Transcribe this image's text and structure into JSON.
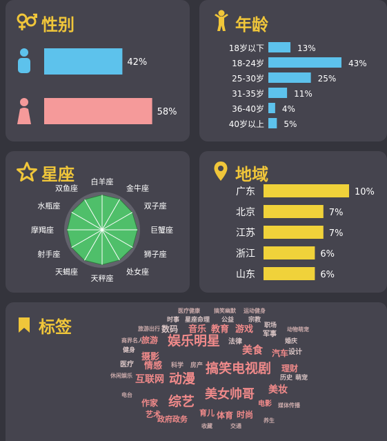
{
  "colors": {
    "accent": "#f0c63a",
    "male": "#5dc2ec",
    "female": "#f59a9a",
    "age_bar": "#5dc2ec",
    "region_bar": "#f0d23a",
    "zodiac_fill": "#4fbf6a",
    "tag_red": "#f08a8a"
  },
  "gender": {
    "title": "性别",
    "icon": "gender-icon",
    "chart_data": {
      "type": "bar",
      "categories": [
        "男",
        "女"
      ],
      "values": [
        42,
        58
      ],
      "value_labels": [
        "42%",
        "58%"
      ],
      "xlim": [
        0,
        100
      ]
    }
  },
  "age": {
    "title": "年龄",
    "icon": "person-icon",
    "chart_data": {
      "type": "bar",
      "categories": [
        "18岁以下",
        "18-24岁",
        "25-30岁",
        "31-35岁",
        "36-40岁",
        "40岁以上"
      ],
      "values": [
        13,
        43,
        25,
        11,
        4,
        5
      ],
      "value_labels": [
        "13%",
        "43%",
        "25%",
        "11%",
        "4%",
        "5%"
      ],
      "xlim": [
        0,
        43
      ]
    }
  },
  "zodiac": {
    "title": "星座",
    "icon": "star-icon",
    "chart_data": {
      "type": "radar",
      "categories": [
        "白羊座",
        "金牛座",
        "双子座",
        "巨蟹座",
        "狮子座",
        "处女座",
        "天秤座",
        "天蝎座",
        "射手座",
        "摩羯座",
        "水瓶座",
        "双鱼座"
      ],
      "values": [
        0.92,
        0.93,
        0.92,
        0.93,
        0.93,
        0.92,
        0.92,
        0.93,
        0.93,
        0.92,
        0.93,
        0.92
      ],
      "rlim": [
        0,
        1
      ]
    }
  },
  "region": {
    "title": "地域",
    "icon": "location-pin-icon",
    "chart_data": {
      "type": "bar",
      "categories": [
        "广东",
        "北京",
        "江苏",
        "浙江",
        "山东"
      ],
      "values": [
        10,
        7,
        7,
        6,
        6
      ],
      "value_labels": [
        "10%",
        "7%",
        "7%",
        "6%",
        "6%"
      ],
      "xlim": [
        0,
        10
      ]
    }
  },
  "tags": {
    "title": "标签",
    "icon": "bookmark-icon",
    "words": [
      {
        "text": "医疗健康",
        "color": "#c9a9a9"
      },
      {
        "text": "搞笑幽默",
        "color": "#c9a9a9"
      },
      {
        "text": "运动健身",
        "color": "#c9a9a9"
      },
      {
        "text": "时事",
        "color": "#d9c4c4"
      },
      {
        "text": "星座命理",
        "color": "#d9c4c4"
      },
      {
        "text": "公益",
        "color": "#d9c4c4"
      },
      {
        "text": "宗教",
        "color": "#d9c4c4"
      },
      {
        "text": "旅游出行",
        "color": "#c9a9a9"
      },
      {
        "text": "数码",
        "color": "#d9c4c4"
      },
      {
        "text": "音乐",
        "color": "#f08a8a"
      },
      {
        "text": "教育",
        "color": "#f08a8a"
      },
      {
        "text": "游戏",
        "color": "#f08a8a"
      },
      {
        "text": "职场",
        "color": "#d9c4c4"
      },
      {
        "text": "军事",
        "color": "#d9c4c4"
      },
      {
        "text": "动物萌宠",
        "color": "#c9a9a9"
      },
      {
        "text": "商界名人",
        "color": "#c9a9a9"
      },
      {
        "text": "旅游",
        "color": "#f08a8a"
      },
      {
        "text": "娱乐明星",
        "color": "#f08a8a"
      },
      {
        "text": "法律",
        "color": "#d9c4c4"
      },
      {
        "text": "美食",
        "color": "#f08a8a"
      },
      {
        "text": "婚庆",
        "color": "#d9c4c4"
      },
      {
        "text": "健身",
        "color": "#d9c4c4"
      },
      {
        "text": "汽车",
        "color": "#f08a8a"
      },
      {
        "text": "设计",
        "color": "#d9c4c4"
      },
      {
        "text": "摄影",
        "color": "#f08a8a"
      },
      {
        "text": "医疗",
        "color": "#d9c4c4"
      },
      {
        "text": "情感",
        "color": "#f08a8a"
      },
      {
        "text": "科学",
        "color": "#c9a9a9"
      },
      {
        "text": "房产",
        "color": "#c9a9a9"
      },
      {
        "text": "搞笑电视剧",
        "color": "#f08a8a"
      },
      {
        "text": "理财",
        "color": "#f08a8a"
      },
      {
        "text": "休闲娱乐",
        "color": "#c9a9a9"
      },
      {
        "text": "互联网",
        "color": "#f08a8a"
      },
      {
        "text": "动漫",
        "color": "#f08a8a"
      },
      {
        "text": "历史",
        "color": "#d9c4c4"
      },
      {
        "text": "萌宠",
        "color": "#d9c4c4"
      },
      {
        "text": "美妆",
        "color": "#f08a8a"
      },
      {
        "text": "电台",
        "color": "#c9a9a9"
      },
      {
        "text": "美女帅哥",
        "color": "#f08a8a"
      },
      {
        "text": "作家",
        "color": "#f08a8a"
      },
      {
        "text": "综艺",
        "color": "#f08a8a"
      },
      {
        "text": "电影",
        "color": "#f08a8a"
      },
      {
        "text": "媒体传播",
        "color": "#c9a9a9"
      },
      {
        "text": "育儿",
        "color": "#f08a8a"
      },
      {
        "text": "艺术",
        "color": "#f08a8a"
      },
      {
        "text": "政府政务",
        "color": "#f08a8a"
      },
      {
        "text": "体育",
        "color": "#f08a8a"
      },
      {
        "text": "时尚",
        "color": "#f08a8a"
      },
      {
        "text": "收藏",
        "color": "#c9a9a9"
      },
      {
        "text": "交通",
        "color": "#c9a9a9"
      },
      {
        "text": "养生",
        "color": "#c9a9a9"
      }
    ]
  }
}
